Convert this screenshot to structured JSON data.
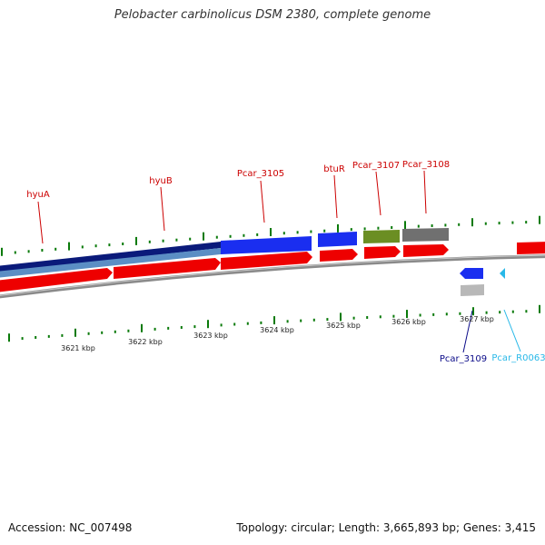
{
  "title": "Pelobacter carbinolicus DSM 2380, complete genome",
  "footer": {
    "accession": "Accession: NC_007498",
    "topology": "Topology: circular; Length: 3,665,893 bp; Genes: 3,415"
  },
  "gene_labels": {
    "hyuA": "hyuA",
    "hyuB": "hyuB",
    "pcar3105": "Pcar_3105",
    "btuR": "btuR",
    "pcar3107": "Pcar_3107",
    "pcar3108": "Pcar_3108",
    "pcar3109": "Pcar_3109",
    "pcarR0063": "Pcar_R0063"
  },
  "kbp_labels": {
    "k3621": "3621 kbp",
    "k3622": "3622 kbp",
    "k3623": "3623 kbp",
    "k3624": "3624 kbp",
    "k3625": "3625 kbp",
    "k3626": "3626 kbp",
    "k3627": "3627 kbp"
  },
  "colors": {
    "cds_forward": "#ee0000",
    "gene_dark_blue": "#0a1a7a",
    "gene_blue": "#1a2ef0",
    "gene_steel": "#5b8ec4",
    "gene_olive": "#6b8e23",
    "gene_gray": "#707070",
    "gene_light_gray": "#b8b8b8",
    "rna_cyan": "#28b8e8",
    "backbone": "#8a8a8a",
    "tick_green": "#0a7a0a",
    "label_red": "#cc0000",
    "label_navy": "#0a0a88",
    "label_cyan": "#28b8e8"
  }
}
